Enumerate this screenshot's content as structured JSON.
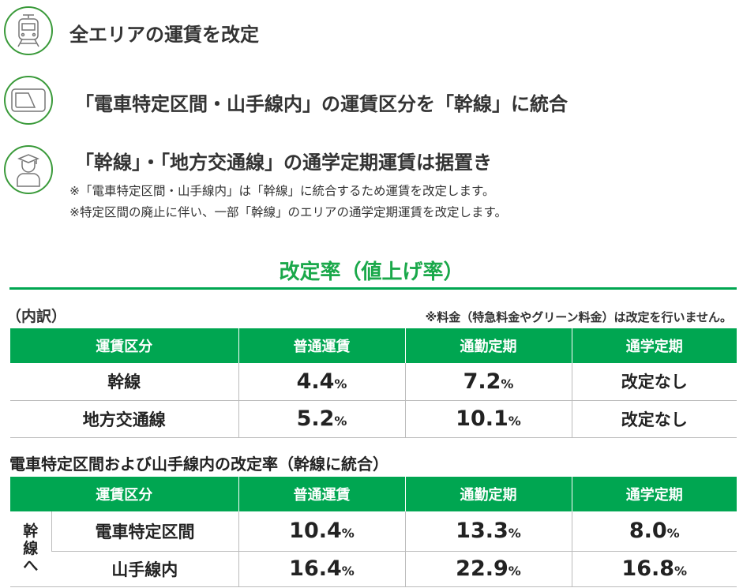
{
  "points": [
    {
      "icon": "train-icon",
      "text": "全エリアの運賃を改定"
    },
    {
      "icon": "ic-card-icon",
      "text": "「電車特定区間・山手線内」の運賃区分を「幹線」に統合"
    },
    {
      "icon": "student-icon",
      "text": "「幹線」・「地方交通線」の通学定期運賃は据置き"
    }
  ],
  "notes": [
    "※「電車特定区間・山手線内」は「幹線」に統合するため運賃を改定します。",
    "※特定区間の廃止に伴い、一部「幹線」のエリアの通学定期運賃を改定します。"
  ],
  "section_title": "改定率（値上げ率）",
  "breakdown_label": "（内訳）",
  "breakdown_note": "※料金（特急料金やグリーン料金）は改定を行いません。",
  "table1": {
    "headers": [
      "運賃区分",
      "普通運賃",
      "通勤定期",
      "通学定期"
    ],
    "rows": [
      {
        "label": "幹線",
        "values": [
          "4.4",
          "7.2"
        ],
        "student": "改定なし"
      },
      {
        "label": "地方交通線",
        "values": [
          "5.2",
          "10.1"
        ],
        "student": "改定なし"
      }
    ]
  },
  "table2_title": "電車特定区間および山手線内の改定率（幹線に統合）",
  "table2": {
    "headers": [
      "運賃区分",
      "普通運賃",
      "通勤定期",
      "通学定期"
    ],
    "group": "幹線へ",
    "rows": [
      {
        "label": "電車特定区間",
        "values": [
          "10.4",
          "13.3",
          "8.0"
        ]
      },
      {
        "label": "山手線内",
        "values": [
          "16.4",
          "22.9",
          "16.8"
        ]
      }
    ]
  },
  "unit": "%",
  "colors": {
    "green": "#00a651",
    "heading_green": "#1aa84a",
    "icon_ring": "#3a9a3a"
  }
}
